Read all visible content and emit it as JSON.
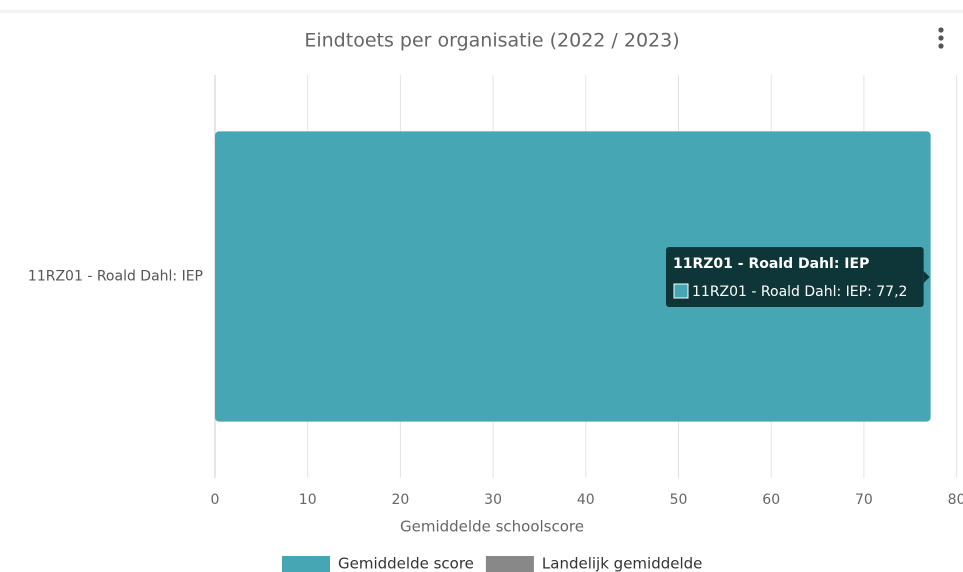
{
  "chart_data": {
    "type": "bar",
    "orientation": "horizontal",
    "title": "Eindtoets per organisatie (2022 / 2023)",
    "x_label": "Gemiddelde schoolscore",
    "categories": [
      "11RZ01 - Roald Dahl: IEP"
    ],
    "series": [
      {
        "name": "Gemiddelde score",
        "color": "#46a6b4",
        "values": [
          77.2
        ],
        "value_labels": [
          "77,2"
        ]
      },
      {
        "name": "Landelijk gemiddelde",
        "color": "#888888",
        "values": [
          null
        ]
      }
    ],
    "xlim": [
      0,
      80
    ],
    "xticks": [
      0,
      10,
      20,
      30,
      40,
      50,
      60,
      70,
      80
    ],
    "grid": true
  }
}
